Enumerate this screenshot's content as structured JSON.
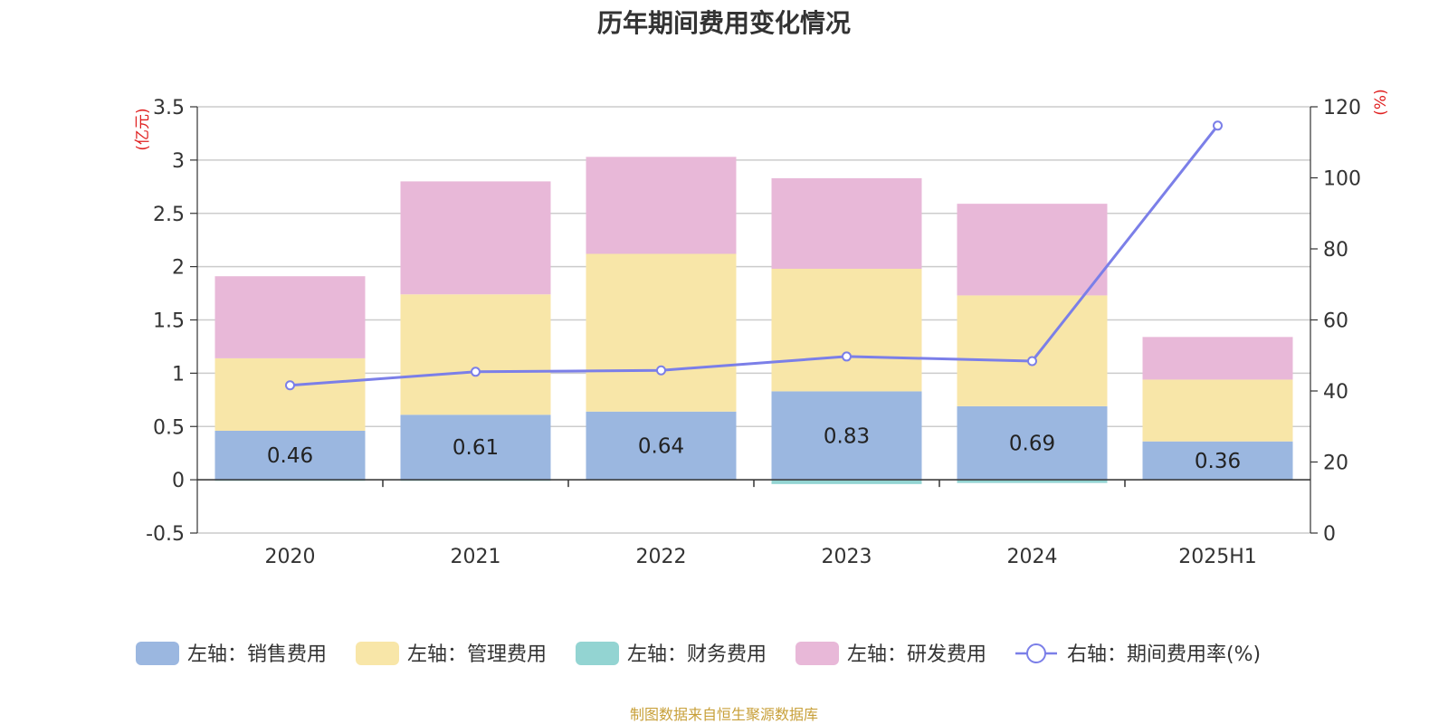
{
  "chart_data": {
    "type": "bar",
    "title": "历年期间费用变化情况",
    "categories": [
      "2020",
      "2021",
      "2022",
      "2023",
      "2024",
      "2025H1"
    ],
    "stacked": true,
    "series": [
      {
        "name": "左轴：销售费用",
        "axis": "left",
        "values": [
          0.46,
          0.61,
          0.64,
          0.83,
          0.69,
          0.36
        ],
        "color": "#9bb7e0",
        "labels": [
          "0.46",
          "0.61",
          "0.64",
          "0.83",
          "0.69",
          "0.36"
        ]
      },
      {
        "name": "左轴：管理费用",
        "axis": "left",
        "values": [
          0.68,
          1.13,
          1.48,
          1.15,
          1.04,
          0.58
        ],
        "color": "#f8e6a8"
      },
      {
        "name": "左轴：财务费用",
        "axis": "left",
        "values": [
          -0.01,
          -0.01,
          -0.005,
          -0.04,
          -0.03,
          0.0
        ],
        "color": "#93d4d2"
      },
      {
        "name": "左轴：研发费用",
        "axis": "left",
        "values": [
          0.77,
          1.06,
          0.91,
          0.85,
          0.86,
          0.4
        ],
        "color": "#e8b8d8"
      },
      {
        "name": "右轴：期间费用率(%)",
        "axis": "right",
        "type": "line",
        "values": [
          41.6,
          45.4,
          45.8,
          49.7,
          48.4,
          114.7
        ],
        "color": "#7b7fe8"
      }
    ],
    "y_left": {
      "label": "(亿元)",
      "ylim": [
        -0.5,
        3.5
      ],
      "ticks": [
        "-0.5",
        "0",
        "0.5",
        "1",
        "1.5",
        "2",
        "2.5",
        "3",
        "3.5"
      ]
    },
    "y_right": {
      "label": "(%)",
      "ylim": [
        0,
        120
      ],
      "ticks": [
        "0",
        "20",
        "40",
        "60",
        "80",
        "100",
        "120"
      ]
    },
    "grid": true,
    "legend_position": "bottom"
  },
  "source_note": "制图数据来自恒生聚源数据库"
}
